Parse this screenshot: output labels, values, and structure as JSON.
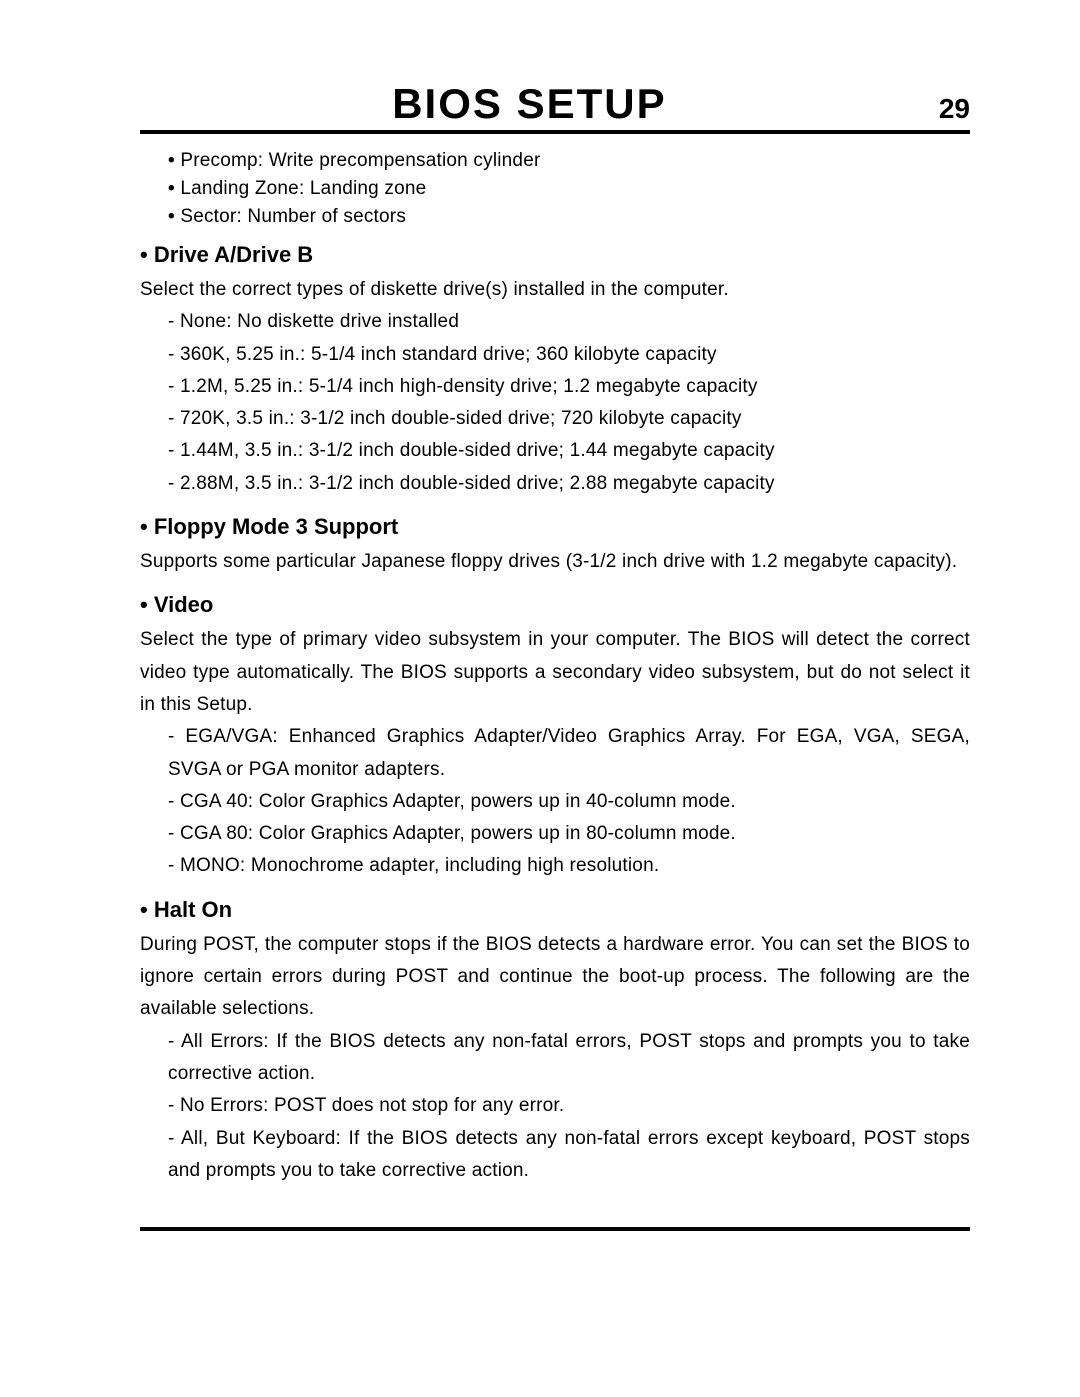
{
  "header": {
    "title": "BIOS SETUP",
    "page": "29"
  },
  "intro": [
    "Precomp:  Write precompensation cylinder",
    "Landing Zone:  Landing zone",
    "Sector:  Number of sectors"
  ],
  "sections": [
    {
      "heading": "Drive A/Drive B",
      "paras": [
        "Select the correct types of diskette drive(s) installed in the computer."
      ],
      "items": [
        "- None:  No diskette drive installed",
        "- 360K, 5.25 in.:  5-1/4 inch standard drive; 360 kilobyte capacity",
        "- 1.2M, 5.25 in.:  5-1/4 inch high-density drive; 1.2 megabyte capacity",
        "- 720K, 3.5 in.:  3-1/2 inch double-sided drive; 720 kilobyte capacity",
        "- 1.44M, 3.5 in.:  3-1/2 inch double-sided drive; 1.44 megabyte capacity",
        "- 2.88M, 3.5 in.:  3-1/2 inch double-sided drive; 2.88 megabyte capacity"
      ]
    },
    {
      "heading": "Floppy Mode 3 Support",
      "paras": [
        "Supports some particular Japanese floppy drives (3-1/2 inch drive with 1.2 megabyte capacity)."
      ],
      "items": []
    },
    {
      "heading": "Video",
      "paras": [
        "Select the type of primary video subsystem in your computer.  The BIOS will detect the correct video type automatically.  The BIOS supports a secondary video subsystem, but do not select it in this Setup."
      ],
      "items": [
        "- EGA/VGA:  Enhanced Graphics Adapter/Video Graphics Array.  For EGA, VGA, SEGA, SVGA or PGA monitor adapters.",
        "- CGA 40:  Color Graphics Adapter, powers up in 40-column mode.",
        "- CGA 80:  Color Graphics Adapter, powers up in 80-column mode.",
        "- MONO:  Monochrome adapter, including high resolution."
      ]
    },
    {
      "heading": "Halt On",
      "paras": [
        "During POST, the computer stops if the BIOS detects a hardware error.  You can set the BIOS to ignore certain errors during POST and continue the boot-up process.  The following are the available selections."
      ],
      "items": [
        "- All Errors:  If the BIOS detects any non-fatal errors, POST stops and prompts you to take corrective action.",
        "- No Errors:  POST does not stop for any error.",
        "- All, But Keyboard:  If the BIOS detects any non-fatal errors except keyboard, POST stops and prompts you to take corrective action."
      ]
    }
  ]
}
